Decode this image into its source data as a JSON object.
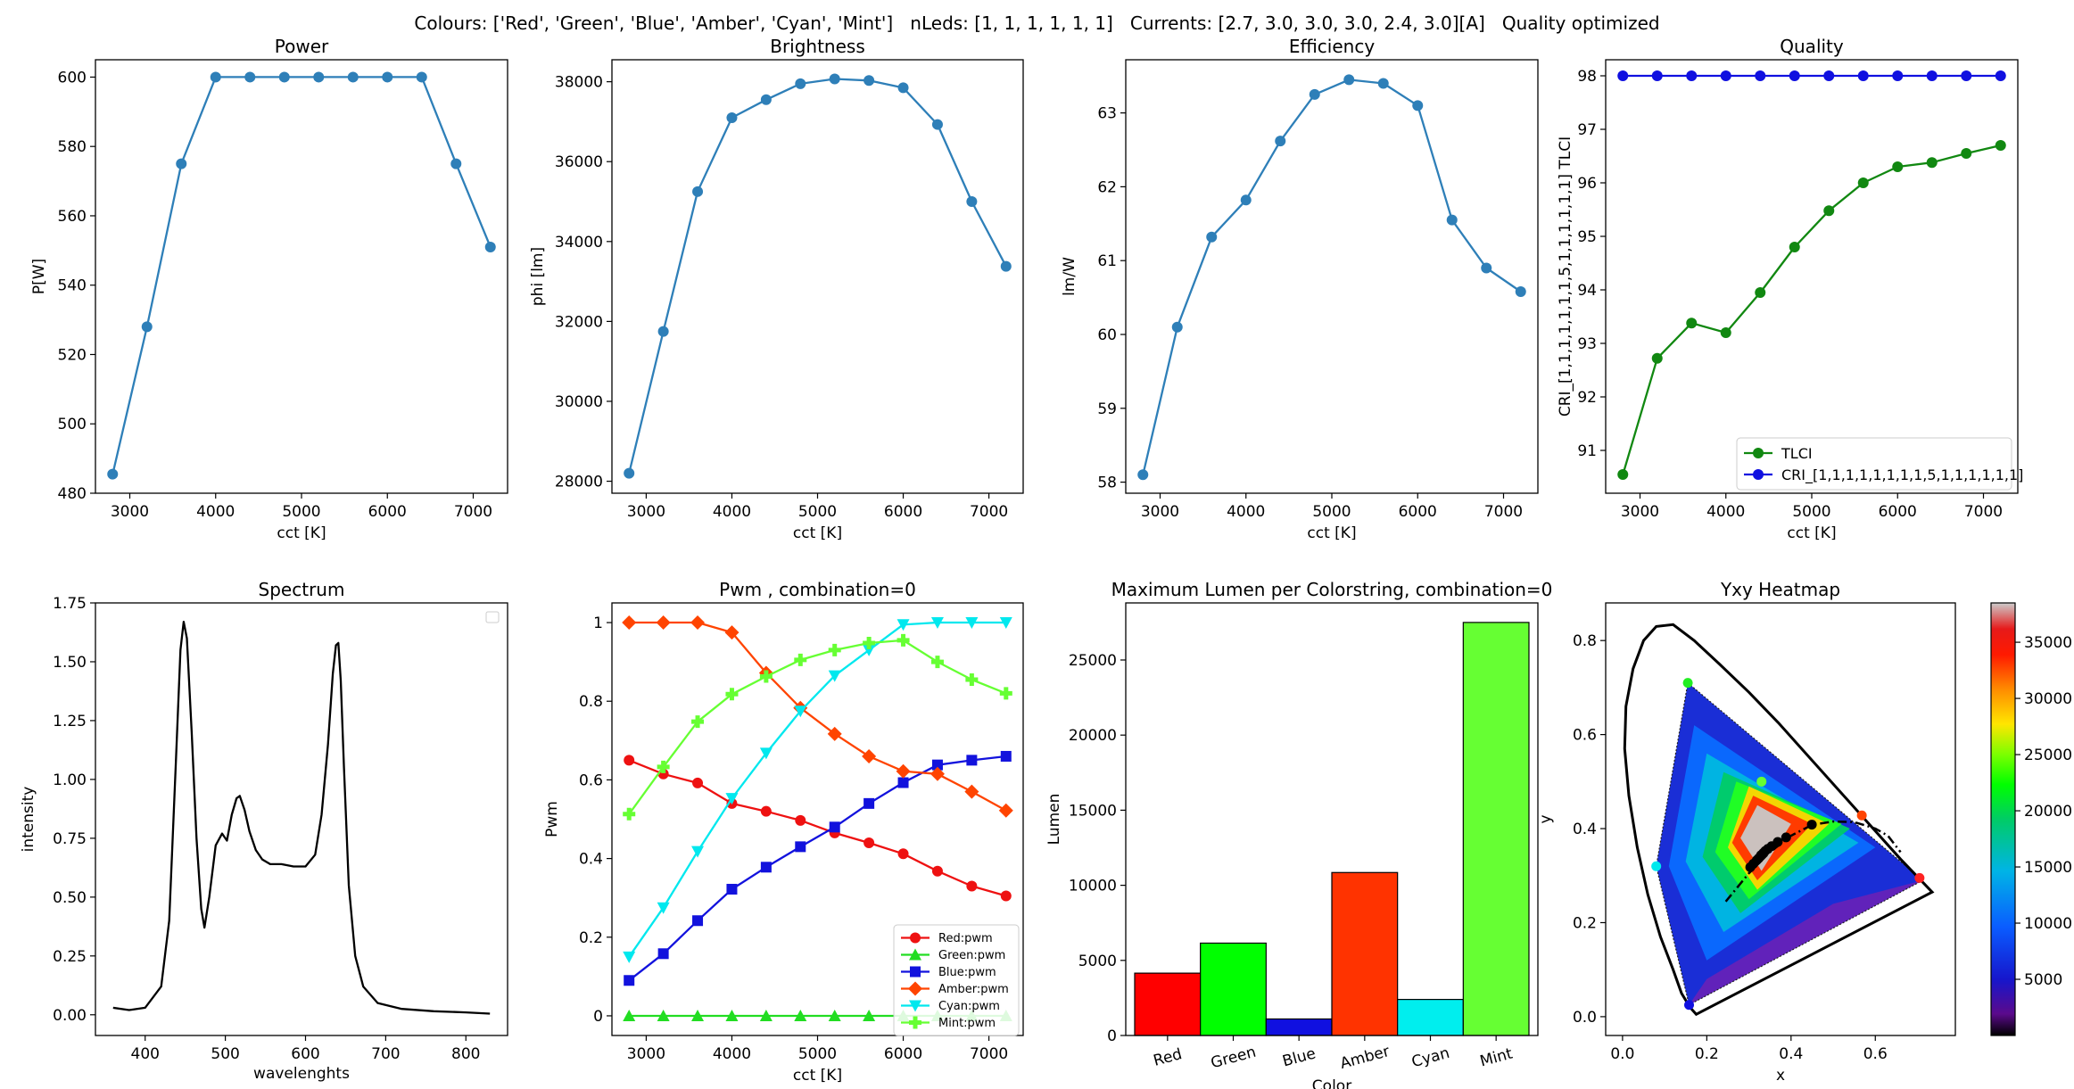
{
  "figure": {
    "suptitle": "Colours: ['Red', 'Green', 'Blue', 'Amber', 'Cyan', 'Mint']   nLeds: [1, 1, 1, 1, 1, 1]   Currents: [2.7, 3.0, 3.0, 3.0, 2.4, 3.0][A]   Quality optimized"
  },
  "colors": {
    "default_blue": "#2e7fb8",
    "tlci_green": "#118811",
    "cri_blue": "#1010e0",
    "red": "#ee1111",
    "green": "#22dd22",
    "blue": "#1212dd",
    "amber": "#ff4400",
    "cyan": "#00e8ee",
    "mint": "#66ff33"
  },
  "chart_data": [
    {
      "id": "power",
      "type": "line",
      "title": "Power",
      "xlabel": "cct [K]",
      "ylabel": "P[W]",
      "xlim": [
        2600,
        7400
      ],
      "ylim": [
        480,
        605
      ],
      "xticks": [
        3000,
        4000,
        5000,
        6000,
        7000
      ],
      "yticks": [
        480,
        500,
        520,
        540,
        560,
        580,
        600
      ],
      "series": [
        {
          "name": "Power",
          "color": "#2e7fb8",
          "marker": "o",
          "x": [
            2800,
            3200,
            3600,
            4000,
            4400,
            4800,
            5200,
            5600,
            6000,
            6400,
            6800,
            7200
          ],
          "y": [
            485.5,
            528,
            575,
            600,
            600,
            600,
            600,
            600,
            600,
            600,
            575,
            551
          ]
        }
      ]
    },
    {
      "id": "brightness",
      "type": "line",
      "title": "Brightness",
      "xlabel": "cct [K]",
      "ylabel": "phi [lm]",
      "xlim": [
        2600,
        7400
      ],
      "ylim": [
        27700,
        38550
      ],
      "xticks": [
        3000,
        4000,
        5000,
        6000,
        7000
      ],
      "yticks": [
        28000,
        30000,
        32000,
        34000,
        36000,
        38000
      ],
      "series": [
        {
          "name": "Brightness",
          "color": "#2e7fb8",
          "marker": "o",
          "x": [
            2800,
            3200,
            3600,
            4000,
            4400,
            4800,
            5200,
            5600,
            6000,
            6400,
            6800,
            7200
          ],
          "y": [
            28200,
            31750,
            35250,
            37100,
            37550,
            37950,
            38070,
            38030,
            37850,
            36930,
            35000,
            33380
          ]
        }
      ]
    },
    {
      "id": "efficiency",
      "type": "line",
      "title": "Efficiency",
      "xlabel": "cct [K]",
      "ylabel": "lm/W",
      "xlim": [
        2600,
        7400
      ],
      "ylim": [
        57.85,
        63.72
      ],
      "xticks": [
        3000,
        4000,
        5000,
        6000,
        7000
      ],
      "yticks": [
        58,
        59,
        60,
        61,
        62,
        63
      ],
      "series": [
        {
          "name": "Efficiency",
          "color": "#2e7fb8",
          "marker": "o",
          "x": [
            2800,
            3200,
            3600,
            4000,
            4400,
            4800,
            5200,
            5600,
            6000,
            6400,
            6800,
            7200
          ],
          "y": [
            58.1,
            60.1,
            61.32,
            61.82,
            62.62,
            63.25,
            63.45,
            63.4,
            63.1,
            61.55,
            60.9,
            60.58
          ]
        }
      ]
    },
    {
      "id": "quality",
      "type": "line",
      "title": "Quality",
      "xlabel": "cct [K]",
      "ylabel": "CRI_[1,1,1,1,1,1,1,5,1,1,1,1,1,1] TLCI",
      "xlim": [
        2600,
        7400
      ],
      "ylim": [
        90.2,
        98.3
      ],
      "xticks": [
        3000,
        4000,
        5000,
        6000,
        7000
      ],
      "yticks": [
        91,
        92,
        93,
        94,
        95,
        96,
        97,
        98
      ],
      "legend": "lower right",
      "series": [
        {
          "name": "TLCI",
          "color": "#118811",
          "marker": "o",
          "x": [
            2800,
            3200,
            3600,
            4000,
            4400,
            4800,
            5200,
            5600,
            6000,
            6400,
            6800,
            7200
          ],
          "y": [
            90.55,
            92.72,
            93.38,
            93.2,
            93.95,
            94.8,
            95.48,
            96.0,
            96.3,
            96.38,
            96.55,
            96.7
          ]
        },
        {
          "name": "CRI_[1,1,1,1,1,1,1,1,5,1,1,1,1,1,1]",
          "color": "#1010e0",
          "marker": "o",
          "x": [
            2800,
            3200,
            3600,
            4000,
            4400,
            4800,
            5200,
            5600,
            6000,
            6400,
            6800,
            7200
          ],
          "y": [
            98,
            98,
            98,
            98,
            98,
            98,
            98,
            98,
            98,
            98,
            98,
            98
          ]
        }
      ]
    },
    {
      "id": "spectrum",
      "type": "line",
      "title": "Spectrum",
      "xlabel": "wavelenghts",
      "ylabel": "intensity",
      "xlim": [
        338,
        852
      ],
      "ylim": [
        -0.088,
        1.75
      ],
      "xticks": [
        400,
        500,
        600,
        700,
        800
      ],
      "yticks": [
        0.0,
        0.25,
        0.5,
        0.75,
        1.0,
        1.25,
        1.5,
        1.75
      ],
      "ytick_labels": [
        "0.00",
        "0.25",
        "0.50",
        "0.75",
        "1.00",
        "1.25",
        "1.50",
        "1.75"
      ],
      "legend": "empty box top-right",
      "series": [
        {
          "name": "",
          "color": "#000000",
          "x": [
            360,
            380,
            400,
            420,
            430,
            438,
            444,
            448,
            452,
            458,
            464,
            470,
            474,
            480,
            488,
            496,
            502,
            508,
            514,
            518,
            524,
            530,
            538,
            546,
            556,
            570,
            585,
            600,
            612,
            620,
            628,
            634,
            638,
            641,
            644,
            648,
            654,
            662,
            672,
            690,
            720,
            760,
            800,
            830
          ],
          "y": [
            0.03,
            0.02,
            0.03,
            0.12,
            0.4,
            1.05,
            1.55,
            1.67,
            1.6,
            1.2,
            0.75,
            0.45,
            0.37,
            0.5,
            0.72,
            0.77,
            0.74,
            0.85,
            0.92,
            0.93,
            0.87,
            0.78,
            0.7,
            0.66,
            0.64,
            0.64,
            0.63,
            0.63,
            0.68,
            0.85,
            1.15,
            1.45,
            1.57,
            1.58,
            1.42,
            1.05,
            0.55,
            0.25,
            0.12,
            0.05,
            0.025,
            0.015,
            0.01,
            0.005
          ]
        }
      ]
    },
    {
      "id": "pwm",
      "type": "line",
      "title": "Pwm , combination=0",
      "xlabel": "cct [K]",
      "ylabel": "Pwm",
      "xlim": [
        2600,
        7400
      ],
      "ylim": [
        -0.05,
        1.05
      ],
      "xticks": [
        3000,
        4000,
        5000,
        6000,
        7000
      ],
      "yticks": [
        0.0,
        0.2,
        0.4,
        0.6,
        0.8,
        1.0
      ],
      "legend": "lower right",
      "series": [
        {
          "name": "Red:pwm",
          "color": "#ee1111",
          "marker": "o",
          "x": [
            2800,
            3200,
            3600,
            4000,
            4400,
            4800,
            5200,
            5600,
            6000,
            6400,
            6800,
            7200
          ],
          "y": [
            0.65,
            0.615,
            0.592,
            0.54,
            0.52,
            0.497,
            0.465,
            0.44,
            0.412,
            0.368,
            0.33,
            0.305
          ]
        },
        {
          "name": "Green:pwm",
          "color": "#22dd22",
          "marker": "^",
          "x": [
            2800,
            3200,
            3600,
            4000,
            4400,
            4800,
            5200,
            5600,
            6000,
            6400,
            6800,
            7200
          ],
          "y": [
            0,
            0,
            0,
            0,
            0,
            0,
            0,
            0,
            0,
            0,
            0,
            0
          ]
        },
        {
          "name": "Blue:pwm",
          "color": "#1212dd",
          "marker": "s",
          "x": [
            2800,
            3200,
            3600,
            4000,
            4400,
            4800,
            5200,
            5600,
            6000,
            6400,
            6800,
            7200
          ],
          "y": [
            0.09,
            0.158,
            0.242,
            0.322,
            0.378,
            0.43,
            0.48,
            0.54,
            0.593,
            0.638,
            0.65,
            0.66
          ]
        },
        {
          "name": "Amber:pwm",
          "color": "#ff4400",
          "marker": "D",
          "x": [
            2800,
            3200,
            3600,
            4000,
            4400,
            4800,
            5200,
            5600,
            6000,
            6400,
            6800,
            7200
          ],
          "y": [
            1.0,
            1.0,
            1.0,
            0.975,
            0.872,
            0.783,
            0.717,
            0.66,
            0.622,
            0.615,
            0.57,
            0.522
          ]
        },
        {
          "name": "Cyan:pwm",
          "color": "#00e8ee",
          "marker": "v",
          "x": [
            2800,
            3200,
            3600,
            4000,
            4400,
            4800,
            5200,
            5600,
            6000,
            6400,
            6800,
            7200
          ],
          "y": [
            0.15,
            0.275,
            0.418,
            0.553,
            0.668,
            0.775,
            0.865,
            0.93,
            0.995,
            1.0,
            1.0,
            1.0
          ]
        },
        {
          "name": "Mint:pwm",
          "color": "#66ff33",
          "marker": "P",
          "x": [
            2800,
            3200,
            3600,
            4000,
            4400,
            4800,
            5200,
            5600,
            6000,
            6400,
            6800,
            7200
          ],
          "y": [
            0.513,
            0.633,
            0.748,
            0.818,
            0.863,
            0.905,
            0.93,
            0.948,
            0.955,
            0.9,
            0.855,
            0.82
          ]
        }
      ]
    },
    {
      "id": "lumen",
      "type": "bar",
      "title": "Maximum Lumen per Colorstring, combination=0",
      "xlabel": "Color",
      "ylabel": "Lumen",
      "ylim": [
        0,
        28800
      ],
      "yticks": [
        0,
        5000,
        10000,
        15000,
        20000,
        25000
      ],
      "categories": [
        "Red",
        "Green",
        "Blue",
        "Amber",
        "Cyan",
        "Mint"
      ],
      "values": [
        4150,
        6150,
        1100,
        10850,
        2400,
        27500
      ],
      "bar_colors": [
        "#ff0000",
        "#00ff00",
        "#1010e0",
        "#ff3300",
        "#00eeee",
        "#66ff33"
      ]
    },
    {
      "id": "heatmap",
      "type": "heatmap",
      "title": "Yxy Heatmap",
      "xlabel": "x",
      "ylabel": "y",
      "xlim": [
        -0.04,
        0.79
      ],
      "ylim": [
        -0.04,
        0.88
      ],
      "xticks": [
        0.0,
        0.2,
        0.4,
        0.6
      ],
      "yticks": [
        0.0,
        0.2,
        0.4,
        0.6,
        0.8
      ],
      "xtick_labels": [
        "0.0",
        "0.2",
        "0.4",
        "0.6"
      ],
      "ytick_labels": [
        "0.0",
        "0.2",
        "0.4",
        "0.6",
        "0.8"
      ],
      "colorbar": {
        "min": 0,
        "max": 38500,
        "ticks": [
          5000,
          10000,
          15000,
          20000,
          25000,
          30000,
          35000
        ]
      },
      "gamut": [
        [
          0.155,
          0.71
        ],
        [
          0.713,
          0.29
        ],
        [
          0.158,
          0.025
        ],
        [
          0.08,
          0.32
        ]
      ],
      "led_points": [
        {
          "name": "Red",
          "x": 0.705,
          "y": 0.295,
          "color": "#ff2222"
        },
        {
          "name": "Green",
          "x": 0.155,
          "y": 0.71,
          "color": "#22ee22"
        },
        {
          "name": "Blue",
          "x": 0.158,
          "y": 0.025,
          "color": "#1010e0"
        },
        {
          "name": "Amber",
          "x": 0.568,
          "y": 0.428,
          "color": "#ff4400"
        },
        {
          "name": "Cyan",
          "x": 0.08,
          "y": 0.32,
          "color": "#00e8ee"
        },
        {
          "name": "Mint",
          "x": 0.33,
          "y": 0.5,
          "color": "#66ff33"
        }
      ],
      "planckian": {
        "x": [
          0.245,
          0.3,
          0.35,
          0.4,
          0.45,
          0.5,
          0.55,
          0.6,
          0.63,
          0.66
        ],
        "y": [
          0.245,
          0.305,
          0.35,
          0.385,
          0.408,
          0.415,
          0.414,
          0.4,
          0.385,
          0.35
        ]
      },
      "cct_points": {
        "x": [
          0.3032,
          0.3105,
          0.3186,
          0.3228,
          0.3286,
          0.3339,
          0.3387,
          0.3449,
          0.3539,
          0.3684,
          0.3883,
          0.4493
        ],
        "y": [
          0.3179,
          0.3251,
          0.3328,
          0.3365,
          0.3434,
          0.3479,
          0.3524,
          0.3569,
          0.3627,
          0.3716,
          0.3813,
          0.4085
        ]
      }
    }
  ]
}
